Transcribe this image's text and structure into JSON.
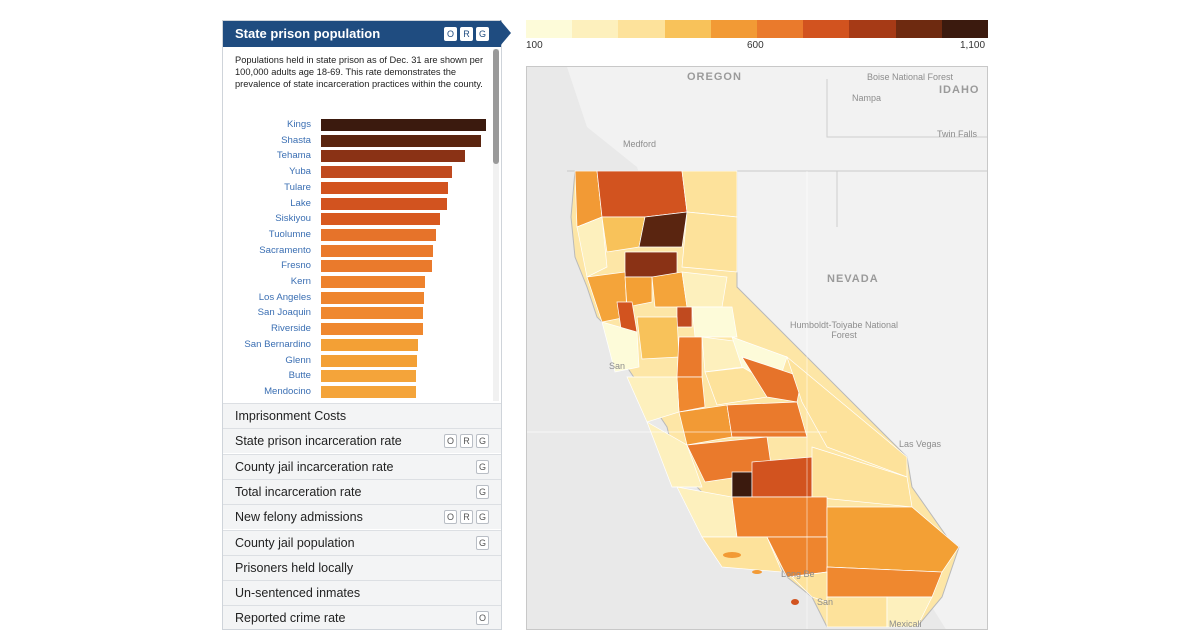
{
  "panel": {
    "title": "State prison population",
    "title_badges": [
      "O",
      "R",
      "G"
    ],
    "description": "Populations held in state prison as of Dec. 31 are shown per 100,000 adults age 18-69. This rate demonstrates the prevalence of state incarceration practices within the county.",
    "bars": [
      {
        "label": "Kings",
        "rank": 1
      },
      {
        "label": "Shasta",
        "rank": 2
      },
      {
        "label": "Tehama",
        "rank": 3
      },
      {
        "label": "Yuba",
        "rank": 4
      },
      {
        "label": "Tulare",
        "rank": 5
      },
      {
        "label": "Lake",
        "rank": 6
      },
      {
        "label": "Siskiyou",
        "rank": 7
      },
      {
        "label": "Tuolumne",
        "rank": 8
      },
      {
        "label": "Sacramento",
        "rank": 9
      },
      {
        "label": "Fresno",
        "rank": 10
      },
      {
        "label": "Kern",
        "rank": 11
      },
      {
        "label": "Los Angeles",
        "rank": 12
      },
      {
        "label": "San Joaquin",
        "rank": 13
      },
      {
        "label": "Riverside",
        "rank": 14
      },
      {
        "label": "San Bernardino",
        "rank": 15
      },
      {
        "label": "Glenn",
        "rank": 16
      },
      {
        "label": "Butte",
        "rank": 17
      },
      {
        "label": "Mendocino",
        "rank": 18
      }
    ],
    "bar_values": [
      1080,
      1045,
      940,
      860,
      830,
      825,
      780,
      750,
      735,
      725,
      680,
      675,
      670,
      665,
      635,
      630,
      625,
      620
    ],
    "bar_colors": [
      "#3b1a0e",
      "#5a2510",
      "#8a3215",
      "#c04a1f",
      "#d2531f",
      "#d2531f",
      "#d8591f",
      "#e6732a",
      "#ea7a2c",
      "#ea7a2c",
      "#ee822d",
      "#ee852e",
      "#ef882f",
      "#ef882f",
      "#f3a035",
      "#f3a035",
      "#f4a43a",
      "#f4a43a"
    ],
    "menu": [
      {
        "label": "Imprisonment Costs",
        "badges": []
      },
      {
        "label": "State prison incarceration rate",
        "badges": [
          "O",
          "R",
          "G"
        ]
      },
      {
        "label": "County jail incarceration rate",
        "badges": [
          "G"
        ]
      },
      {
        "label": "Total incarceration rate",
        "badges": [
          "G"
        ]
      },
      {
        "label": "New felony admissions",
        "badges": [
          "O",
          "R",
          "G"
        ]
      },
      {
        "label": "County jail population",
        "badges": [
          "G"
        ]
      },
      {
        "label": "Prisoners held locally",
        "badges": []
      },
      {
        "label": "Un-sentenced inmates",
        "badges": []
      },
      {
        "label": "Reported crime rate",
        "badges": [
          "O"
        ]
      }
    ]
  },
  "legend": {
    "colors": [
      "#fdfbd9",
      "#fdf0bd",
      "#fde29b",
      "#f8c25a",
      "#f29a35",
      "#ea7a2c",
      "#d2531f",
      "#a63a16",
      "#6e2a10",
      "#3b1a0e"
    ],
    "labels": [
      {
        "text": "100",
        "frac": 0.0
      },
      {
        "text": "600",
        "frac": 0.5
      },
      {
        "text": "1,100",
        "frac": 1.0
      }
    ]
  },
  "map": {
    "places": [
      {
        "text": "OREGON",
        "big": true
      },
      {
        "text": "Boise National Forest",
        "big": false
      },
      {
        "text": "Nampa",
        "big": false
      },
      {
        "text": "IDAHO",
        "big": true
      },
      {
        "text": "Twin Falls",
        "big": false
      },
      {
        "text": "Medford",
        "big": false
      },
      {
        "text": "NEVADA",
        "big": true
      },
      {
        "text": "Humboldt-Toiyabe National Forest",
        "big": false
      },
      {
        "text": "Las Vegas",
        "big": false
      },
      {
        "text": "San",
        "big": false
      },
      {
        "text": "Long Be",
        "big": false
      },
      {
        "text": "San",
        "big": false
      },
      {
        "text": "Mexicali",
        "big": false
      }
    ]
  }
}
